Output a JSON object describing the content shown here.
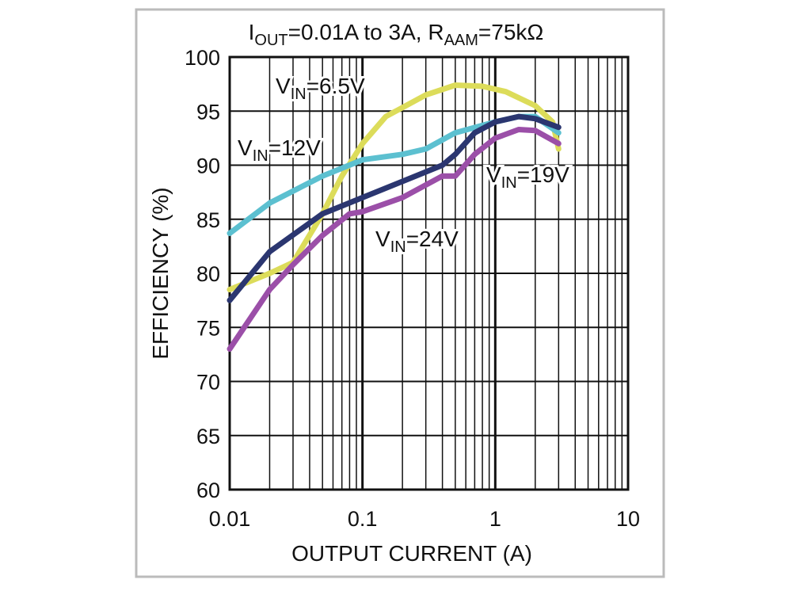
{
  "chart_data": {
    "type": "line",
    "title": [
      "I",
      "OUT",
      "=0.01A to 3A, R",
      "AAM",
      "=75kΩ"
    ],
    "xlabel": "OUTPUT CURRENT (A)",
    "ylabel": "EFFICIENCY (%)",
    "xscale": "log",
    "xlim": [
      0.01,
      10
    ],
    "ylim": [
      60,
      100
    ],
    "xticks": [
      0.01,
      0.1,
      1,
      10
    ],
    "xminor": [
      0.02,
      0.03,
      0.04,
      0.05,
      0.06,
      0.07,
      0.08,
      0.09,
      0.2,
      0.3,
      0.4,
      0.5,
      0.6,
      0.7,
      0.8,
      0.9,
      2,
      3,
      4,
      5,
      6,
      7,
      8,
      9
    ],
    "yticks": [
      60,
      65,
      70,
      75,
      80,
      85,
      90,
      95,
      100
    ],
    "grid": true,
    "series": [
      {
        "name": "VIN=6.5V",
        "color": "#dcdc5a",
        "x": [
          0.01,
          0.02,
          0.03,
          0.05,
          0.07,
          0.1,
          0.15,
          0.3,
          0.5,
          0.8,
          1.2,
          2,
          2.7,
          3
        ],
        "values": [
          78.5,
          80,
          81,
          85.5,
          89,
          92,
          94.5,
          96.5,
          97.4,
          97.3,
          96.8,
          95.5,
          94,
          91.5
        ]
      },
      {
        "name": "VIN=12V",
        "color": "#5cc0d0",
        "x": [
          0.01,
          0.02,
          0.05,
          0.1,
          0.2,
          0.3,
          0.5,
          1,
          1.5,
          2,
          3
        ],
        "values": [
          83.7,
          86.5,
          89,
          90.5,
          91,
          91.5,
          93,
          94,
          94.5,
          94.5,
          93
        ]
      },
      {
        "name": "VIN=19V",
        "color": "#2b3670",
        "x": [
          0.01,
          0.02,
          0.05,
          0.1,
          0.2,
          0.4,
          0.5,
          0.7,
          1,
          1.5,
          2,
          3
        ],
        "values": [
          77.5,
          82,
          85.5,
          87,
          88.5,
          90,
          91,
          93,
          94,
          94.5,
          94.3,
          93.5
        ]
      },
      {
        "name": "VIN=24V",
        "color": "#9b4fa8",
        "x": [
          0.01,
          0.02,
          0.03,
          0.05,
          0.08,
          0.1,
          0.2,
          0.4,
          0.5,
          0.7,
          1,
          1.5,
          2,
          3
        ],
        "values": [
          73,
          78.5,
          80.8,
          83.5,
          85.5,
          85.7,
          87,
          89,
          89,
          91,
          92.5,
          93.3,
          93.2,
          92
        ]
      }
    ]
  }
}
